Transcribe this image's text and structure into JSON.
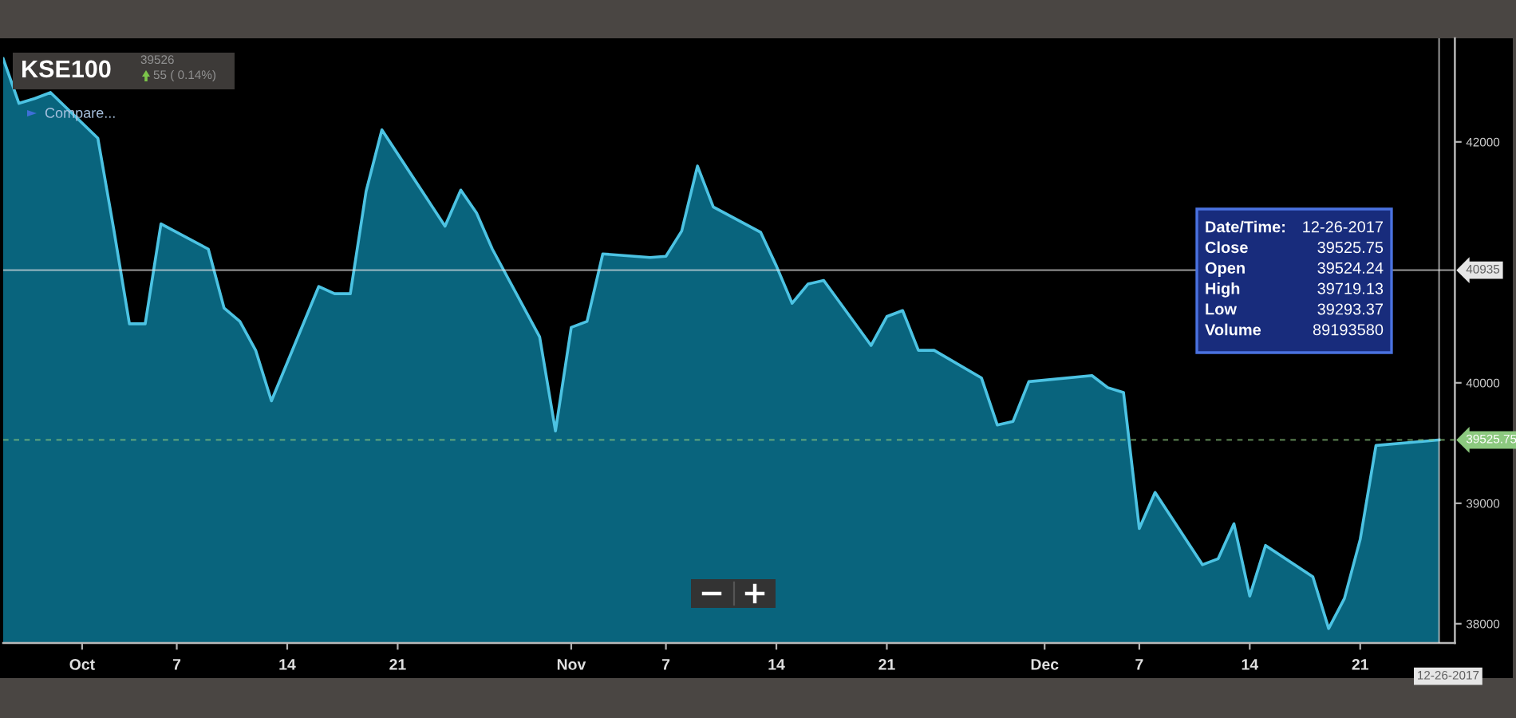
{
  "chart_data": {
    "type": "area",
    "title": "KSE100",
    "x": [
      "2017-09-26",
      "2017-09-27",
      "2017-09-28",
      "2017-09-29",
      "2017-10-02",
      "2017-10-03",
      "2017-10-04",
      "2017-10-05",
      "2017-10-06",
      "2017-10-09",
      "2017-10-10",
      "2017-10-11",
      "2017-10-12",
      "2017-10-13",
      "2017-10-16",
      "2017-10-17",
      "2017-10-18",
      "2017-10-19",
      "2017-10-20",
      "2017-10-23",
      "2017-10-24",
      "2017-10-25",
      "2017-10-26",
      "2017-10-27",
      "2017-10-30",
      "2017-10-31",
      "2017-11-01",
      "2017-11-02",
      "2017-11-03",
      "2017-11-06",
      "2017-11-07",
      "2017-11-08",
      "2017-11-09",
      "2017-11-10",
      "2017-11-13",
      "2017-11-14",
      "2017-11-15",
      "2017-11-16",
      "2017-11-17",
      "2017-11-20",
      "2017-11-21",
      "2017-11-22",
      "2017-11-23",
      "2017-11-24",
      "2017-11-27",
      "2017-11-28",
      "2017-11-29",
      "2017-11-30",
      "2017-12-04",
      "2017-12-05",
      "2017-12-06",
      "2017-12-07",
      "2017-12-08",
      "2017-12-11",
      "2017-12-12",
      "2017-12-13",
      "2017-12-14",
      "2017-12-15",
      "2017-12-18",
      "2017-12-19",
      "2017-12-20",
      "2017-12-21",
      "2017-12-22",
      "2017-12-26"
    ],
    "series": [
      {
        "color": "#4cc3e3",
        "values": [
          42690,
          42320,
          42360,
          42410,
          42030,
          41280,
          40490,
          40490,
          41320,
          41110,
          40620,
          40510,
          40270,
          39850,
          40800,
          40740,
          40740,
          41590,
          42100,
          41500,
          41300,
          41600,
          41410,
          41110,
          40380,
          39600,
          40460,
          40510,
          41070,
          41040,
          41050,
          41260,
          41800,
          41460,
          41250,
          40970,
          40660,
          40820,
          40850,
          40310,
          40550,
          40600,
          40270,
          40270,
          40040,
          39650,
          39680,
          40010,
          40060,
          39960,
          39920,
          38790,
          39090,
          38490,
          38540,
          38830,
          38230,
          38650,
          38390,
          37960,
          38210,
          38700,
          39480,
          39525.75
        ]
      }
    ],
    "xlim": [
      "2017-09-26",
      "2017-12-27"
    ],
    "xticks": [
      {
        "value": "2017-10-01",
        "label": "Oct"
      },
      {
        "value": "2017-10-07",
        "label": "7"
      },
      {
        "value": "2017-10-14",
        "label": "14"
      },
      {
        "value": "2017-10-21",
        "label": "21"
      },
      {
        "value": "2017-11-01",
        "label": "Nov"
      },
      {
        "value": "2017-11-07",
        "label": "7"
      },
      {
        "value": "2017-11-14",
        "label": "14"
      },
      {
        "value": "2017-11-21",
        "label": "21"
      },
      {
        "value": "2017-12-01",
        "label": "Dec"
      },
      {
        "value": "2017-12-07",
        "label": "7"
      },
      {
        "value": "2017-12-14",
        "label": "14"
      },
      {
        "value": "2017-12-21",
        "label": "21"
      }
    ],
    "ylim": [
      37840,
      42860
    ],
    "yticks": [
      38000,
      39000,
      40000,
      42000
    ],
    "ref_lines": [
      {
        "axis": "y",
        "value": 40935,
        "label": "40935",
        "color": "#e6e6e6",
        "line_style": "solid"
      },
      {
        "axis": "y",
        "value": 39525.75,
        "label": "39525.75",
        "color": "#8cc97f",
        "line_style": "dashed"
      },
      {
        "axis": "x",
        "value": "2017-12-26",
        "label": "12-26-2017",
        "color": "#e6e6e6",
        "line_style": "solid"
      }
    ],
    "annotations": [
      "39526",
      "55 ( 0.14%)",
      "Compare...",
      "Date/Time:",
      "12-26-2017",
      "Close",
      "39525.75",
      "Open",
      "39524.24",
      "High",
      "39719.13",
      "Low",
      "39293.37",
      "Volume",
      "89193580"
    ]
  }
}
